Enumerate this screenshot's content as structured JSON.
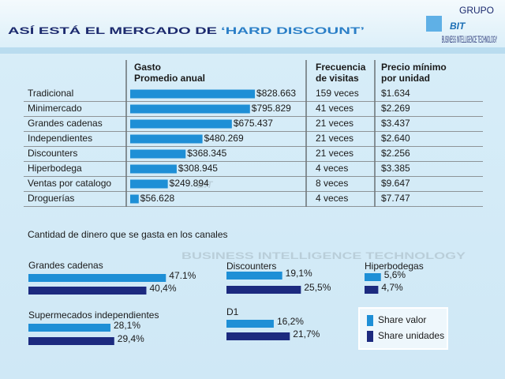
{
  "title": [
    "ASÍ ESTÁ EL MERCADO DE",
    "‘HARD DISCOUNT’"
  ],
  "logo": {
    "group": "GRUPO",
    "name": "BIT",
    "tagline": "BUSINESS INTELLIGENCE TECHNOLOGY"
  },
  "chart_data": [
    {
      "type": "bar",
      "orientation": "horizontal",
      "header": [
        "Gasto",
        "Promedio anual"
      ],
      "categories": [
        "Tradicional",
        "Minimercado",
        "Grandes cadenas",
        "Independientes",
        "Discounters",
        "Hiperbodega",
        "Ventas por catalogo",
        "Droguerías"
      ],
      "values": [
        828663,
        795829,
        675437,
        480269,
        368345,
        308945,
        249894,
        56628
      ],
      "value_labels": [
        "$828.663",
        "$795.829",
        "$675.437",
        "$480.269",
        "$368.345",
        "$308.945",
        "$249.894",
        "$56.628"
      ],
      "color": "#1e8fd6",
      "xlim": [
        0,
        830000
      ],
      "columns": [
        {
          "header": [
            "Frecuencia",
            "de visitas"
          ],
          "values": [
            "159 veces",
            "41 veces",
            "21 veces",
            "21 veces",
            "21 veces",
            "4 veces",
            "8 veces",
            "4 veces"
          ]
        },
        {
          "header": [
            "Precio mínimo",
            "por unidad"
          ],
          "values": [
            "$1.634",
            "$2.269",
            "$3.437",
            "$2.640",
            "$2.256",
            "$3.385",
            "$9.647",
            "$7.747"
          ]
        }
      ]
    },
    {
      "type": "bar",
      "orientation": "horizontal",
      "title": "Cantidad de dinero que se gasta en los canales",
      "categories": [
        "Grandes cadenas",
        "Supermecados independientes",
        "Discounters",
        "D1",
        "Hiperbodegas"
      ],
      "series": [
        {
          "name": "Share valor",
          "color": "#1e8fd6",
          "values": [
            47.1,
            28.1,
            19.1,
            16.2,
            5.6
          ],
          "value_labels": [
            "47.1%",
            "28,1%",
            "19,1%",
            "16,2%",
            "5,6%"
          ]
        },
        {
          "name": "Share unidades",
          "color": "#1c2a7f",
          "values": [
            40.4,
            29.4,
            25.5,
            21.7,
            4.7
          ],
          "value_labels": [
            "40,4%",
            "29,4%",
            "25,5%",
            "21,7%",
            "4,7%"
          ]
        }
      ],
      "xlim": [
        0,
        50
      ],
      "legend": "right"
    }
  ]
}
